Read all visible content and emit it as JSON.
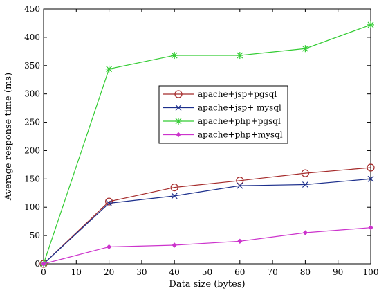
{
  "chart_data": {
    "type": "line",
    "title": "",
    "xlabel": "Data size (bytes)",
    "ylabel": "Average response time (ms)",
    "xlim": [
      0,
      100
    ],
    "ylim": [
      0,
      450
    ],
    "xticks": [
      0,
      10,
      20,
      30,
      40,
      50,
      60,
      70,
      80,
      90,
      100
    ],
    "yticks": [
      0,
      50,
      100,
      150,
      200,
      250,
      300,
      350,
      400,
      450
    ],
    "grid": false,
    "legend_position": "center-right",
    "x": [
      0,
      20,
      40,
      60,
      80,
      100
    ],
    "series": [
      {
        "name": "apache+jsp+pgsql",
        "values": [
          0,
          110,
          135,
          147,
          160,
          170
        ],
        "color": "#a52a2a",
        "marker": "circle"
      },
      {
        "name": "apache+jsp+ mysql",
        "values": [
          0,
          107,
          120,
          138,
          140,
          150
        ],
        "color": "#1c2f8c",
        "marker": "x"
      },
      {
        "name": "apache+php+pgsql",
        "values": [
          0,
          344,
          368,
          368,
          380,
          422
        ],
        "color": "#33cc33",
        "marker": "star"
      },
      {
        "name": "apache+php+mysql",
        "values": [
          0,
          30,
          33,
          40,
          55,
          64
        ],
        "color": "#cc33cc",
        "marker": "diamond"
      }
    ]
  }
}
